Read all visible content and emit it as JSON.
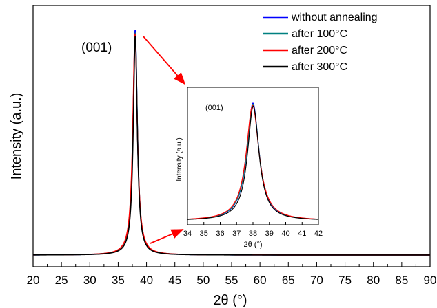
{
  "chart_data": [
    {
      "type": "line",
      "xlabel": "2θ (°)",
      "ylabel": "Intensity (a.u.)",
      "xlim": [
        20,
        90
      ],
      "xticks": [
        20,
        25,
        30,
        35,
        40,
        45,
        50,
        55,
        60,
        65,
        70,
        75,
        80,
        85,
        90
      ],
      "y_tick_labels": false,
      "annotation": "(001)",
      "legend_position": "top-right",
      "series": [
        {
          "name": "without annealing",
          "color": "#0000ff",
          "peak_center": 38.0,
          "peak_height": 1.0,
          "fwhm": 0.9
        },
        {
          "name": "after 100°C",
          "color": "#008080",
          "peak_center": 38.0,
          "peak_height": 0.985,
          "fwhm": 0.92
        },
        {
          "name": "after 200°C",
          "color": "#ff0000",
          "peak_center": 37.98,
          "peak_height": 0.98,
          "fwhm": 0.95
        },
        {
          "name": "after 300°C",
          "color": "#000000",
          "peak_center": 38.02,
          "peak_height": 0.975,
          "fwhm": 0.85
        }
      ]
    },
    {
      "type": "line",
      "xlabel": "2θ (°)",
      "ylabel": "Intensity (a.u.)",
      "xlim": [
        34,
        42
      ],
      "xticks": [
        34,
        35,
        36,
        37,
        38,
        39,
        40,
        41,
        42
      ],
      "annotation": "(001)",
      "series_ref": "same as main chart, zoomed"
    }
  ],
  "colors": {
    "arrow": "#ff0000"
  }
}
